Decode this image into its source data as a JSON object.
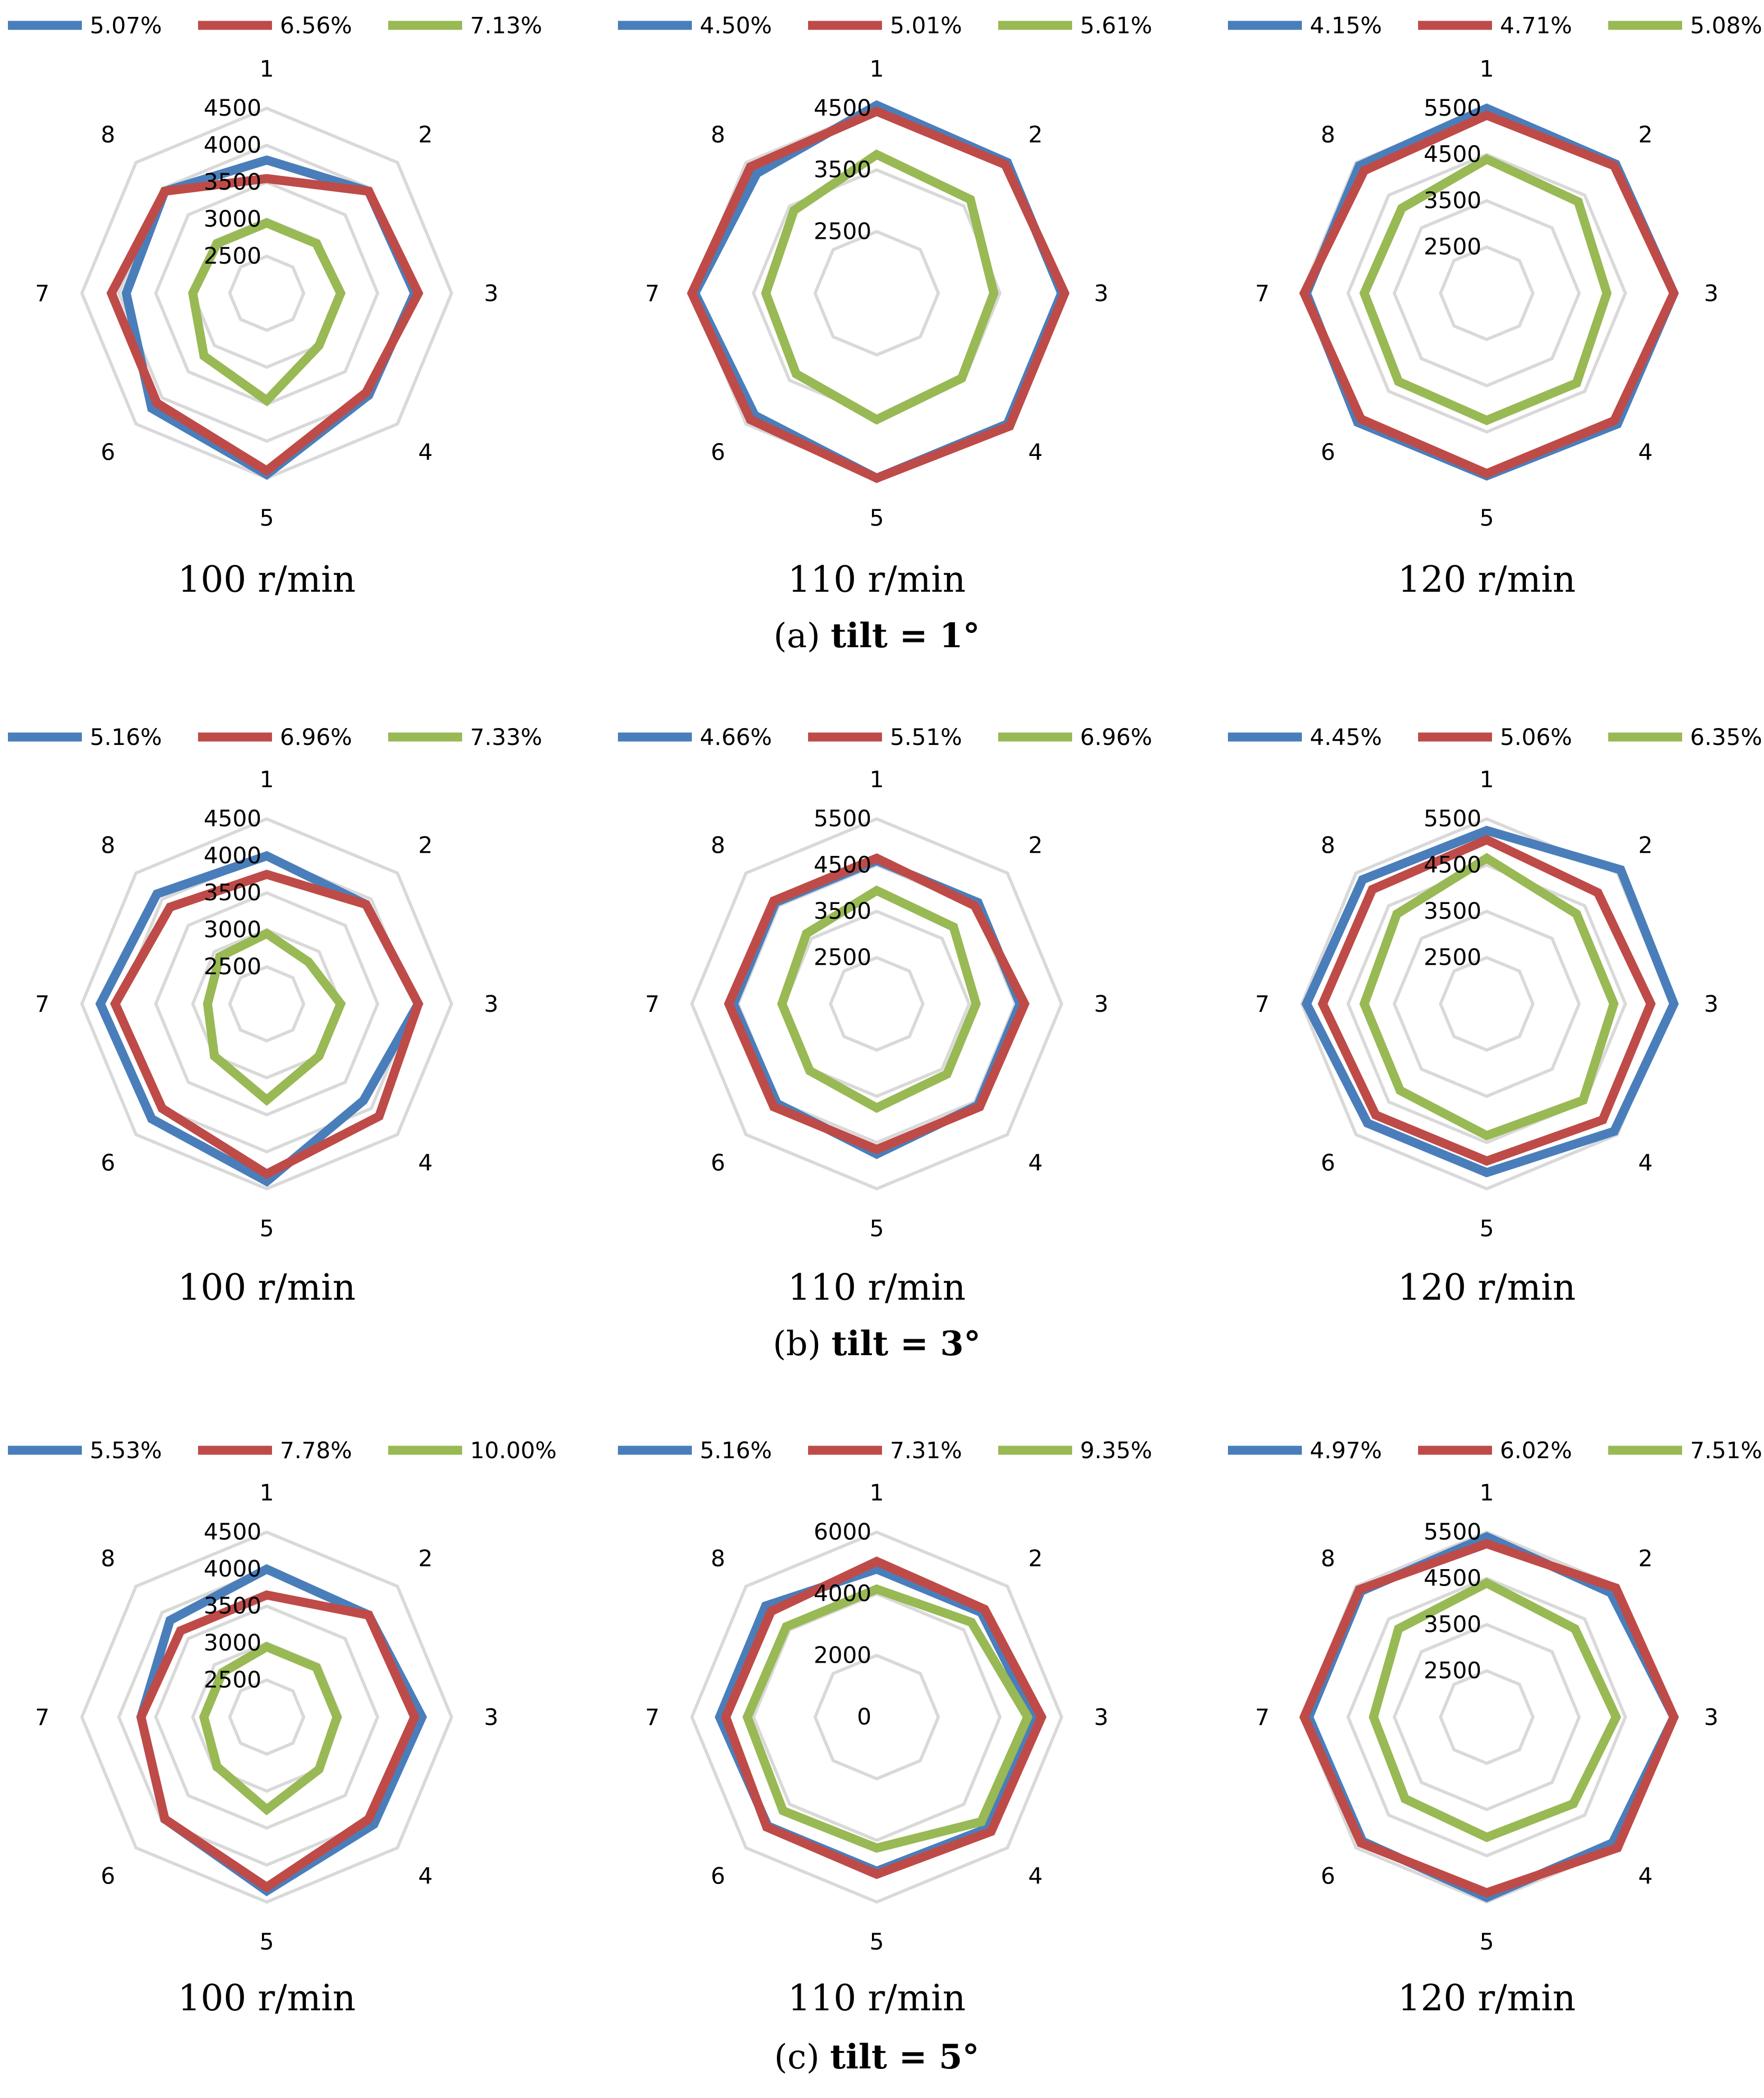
{
  "colors": {
    "blue": "#4a7ebb",
    "red": "#be4b48",
    "green": "#98b954",
    "grid": "#d9d9d9"
  },
  "axis_labels": [
    "1",
    "2",
    "3",
    "4",
    "5",
    "6",
    "7",
    "8"
  ],
  "chart_data": [
    {
      "type": "radar",
      "panel": "a",
      "title": "100 r/min",
      "legend": [
        "5.07%",
        "6.56%",
        "7.13%"
      ],
      "r_ticks": [
        "2500",
        "3000",
        "3500",
        "4000",
        "4500"
      ],
      "r_tick_values": [
        2500,
        3000,
        3500,
        4000,
        4500
      ],
      "r_range": [
        2000,
        4500
      ],
      "series": [
        {
          "name": "5.07%",
          "color": "blue",
          "values": [
            3800,
            3950,
            4000,
            3950,
            4450,
            4200,
            3900,
            3950
          ]
        },
        {
          "name": "6.56%",
          "color": "red",
          "values": [
            3550,
            3950,
            4050,
            3900,
            4400,
            4100,
            4100,
            3950
          ]
        },
        {
          "name": "7.13%",
          "color": "green",
          "values": [
            2950,
            2950,
            3000,
            3000,
            3450,
            3200,
            3000,
            2950
          ]
        }
      ]
    },
    {
      "type": "radar",
      "panel": "a",
      "title": "110 r/min",
      "legend": [
        "4.50%",
        "5.01%",
        "5.61%"
      ],
      "r_ticks": [
        "2500",
        "3500",
        "4500"
      ],
      "r_tick_values": [
        2500,
        3500,
        4500
      ],
      "r_range": [
        1500,
        4500
      ],
      "series": [
        {
          "name": "4.50%",
          "color": "blue",
          "values": [
            4550,
            4500,
            4500,
            4500,
            4500,
            4300,
            4450,
            4250
          ]
        },
        {
          "name": "5.01%",
          "color": "red",
          "values": [
            4450,
            4450,
            4550,
            4550,
            4500,
            4400,
            4500,
            4400
          ]
        },
        {
          "name": "5.61%",
          "color": "green",
          "values": [
            3750,
            3650,
            3400,
            3450,
            3550,
            3350,
            3300,
            3400
          ]
        }
      ]
    },
    {
      "type": "radar",
      "panel": "a",
      "title": "120 r/min",
      "legend": [
        "4.15%",
        "4.71%",
        "5.08%"
      ],
      "r_ticks": [
        "2500",
        "3500",
        "4500",
        "5500"
      ],
      "r_tick_values": [
        2500,
        3500,
        4500,
        5500
      ],
      "r_range": [
        1500,
        5500
      ],
      "series": [
        {
          "name": "4.15%",
          "color": "blue",
          "values": [
            5500,
            5450,
            5550,
            5500,
            5450,
            5450,
            5400,
            5400
          ]
        },
        {
          "name": "4.71%",
          "color": "red",
          "values": [
            5350,
            5400,
            5550,
            5400,
            5400,
            5350,
            5450,
            5250
          ]
        },
        {
          "name": "5.08%",
          "color": "green",
          "values": [
            4400,
            4300,
            4100,
            4250,
            4250,
            4200,
            4150,
            4100
          ]
        }
      ]
    },
    {
      "type": "radar",
      "panel": "b",
      "title": "100 r/min",
      "legend": [
        "5.16%",
        "6.96%",
        "7.33%"
      ],
      "r_ticks": [
        "2500",
        "3000",
        "3500",
        "4000",
        "4500"
      ],
      "r_tick_values": [
        2500,
        3000,
        3500,
        4000,
        4500
      ],
      "r_range": [
        2000,
        4500
      ],
      "series": [
        {
          "name": "5.16%",
          "color": "blue",
          "values": [
            4000,
            3900,
            4050,
            3850,
            4400,
            4200,
            4250,
            4100
          ]
        },
        {
          "name": "6.96%",
          "color": "red",
          "values": [
            3750,
            3900,
            4050,
            4150,
            4300,
            4000,
            4050,
            3850
          ]
        },
        {
          "name": "7.33%",
          "color": "green",
          "values": [
            2950,
            2800,
            3000,
            3000,
            3300,
            3000,
            2800,
            2900
          ]
        }
      ]
    },
    {
      "type": "radar",
      "panel": "b",
      "title": "110 r/min",
      "legend": [
        "4.66%",
        "5.51%",
        "6.96%"
      ],
      "r_ticks": [
        "2500",
        "3500",
        "4500",
        "5500"
      ],
      "r_tick_values": [
        2500,
        3500,
        4500,
        5500
      ],
      "r_range": [
        1500,
        5500
      ],
      "series": [
        {
          "name": "4.66%",
          "color": "blue",
          "values": [
            4600,
            4600,
            4600,
            4600,
            4750,
            4550,
            4600,
            4600
          ]
        },
        {
          "name": "5.51%",
          "color": "red",
          "values": [
            4650,
            4500,
            4700,
            4650,
            4650,
            4650,
            4700,
            4650
          ]
        },
        {
          "name": "6.96%",
          "color": "green",
          "values": [
            3950,
            3850,
            3650,
            3650,
            3750,
            3550,
            3550,
            3650
          ]
        }
      ]
    },
    {
      "type": "radar",
      "panel": "b",
      "title": "120 r/min",
      "legend": [
        "4.45%",
        "5.06%",
        "6.35%"
      ],
      "r_ticks": [
        "2500",
        "3500",
        "4500",
        "5500"
      ],
      "r_tick_values": [
        2500,
        3500,
        4500,
        5500
      ],
      "r_range": [
        1500,
        5500
      ],
      "series": [
        {
          "name": "4.45%",
          "color": "blue",
          "values": [
            5250,
            5600,
            5550,
            5400,
            5150,
            5150,
            5400,
            5300
          ]
        },
        {
          "name": "5.06%",
          "color": "red",
          "values": [
            5050,
            4900,
            5050,
            5050,
            4900,
            4900,
            5050,
            5000
          ]
        },
        {
          "name": "6.35%",
          "color": "green",
          "values": [
            4650,
            4250,
            4250,
            4450,
            4350,
            4150,
            4150,
            4250
          ]
        }
      ]
    },
    {
      "type": "radar",
      "panel": "c",
      "title": "100 r/min",
      "legend": [
        "5.53%",
        "7.78%",
        "10.00%"
      ],
      "r_ticks": [
        "2500",
        "3000",
        "3500",
        "4000",
        "4500"
      ],
      "r_tick_values": [
        2500,
        3000,
        3500,
        4000,
        4500
      ],
      "r_range": [
        2000,
        4500
      ],
      "series": [
        {
          "name": "5.53%",
          "color": "blue",
          "values": [
            4000,
            3950,
            4100,
            4050,
            4350,
            3950,
            3700,
            3850
          ]
        },
        {
          "name": "7.78%",
          "color": "red",
          "values": [
            3650,
            3950,
            4000,
            3950,
            4300,
            3950,
            3700,
            3650
          ]
        },
        {
          "name": "10.00%",
          "color": "green",
          "values": [
            2950,
            2950,
            2950,
            3000,
            3250,
            2950,
            2850,
            2850
          ]
        }
      ]
    },
    {
      "type": "radar",
      "panel": "c",
      "title": "110 r/min",
      "legend": [
        "5.16%",
        "7.31%",
        "9.35%"
      ],
      "r_ticks": [
        "0",
        "2000",
        "4000",
        "6000"
      ],
      "r_tick_values": [
        0,
        2000,
        4000,
        6000
      ],
      "r_range": [
        0,
        6000
      ],
      "series": [
        {
          "name": "5.16%",
          "color": "blue",
          "values": [
            4800,
            4800,
            5100,
            5100,
            5000,
            5000,
            5100,
            5100
          ]
        },
        {
          "name": "7.31%",
          "color": "red",
          "values": [
            5050,
            4950,
            5350,
            5250,
            5100,
            5050,
            4900,
            4850
          ]
        },
        {
          "name": "9.35%",
          "color": "green",
          "values": [
            4150,
            4350,
            4900,
            4800,
            4250,
            4300,
            4200,
            4150
          ]
        }
      ]
    },
    {
      "type": "radar",
      "panel": "c",
      "title": "120 r/min",
      "legend": [
        "4.97%",
        "6.02%",
        "7.51%"
      ],
      "r_ticks": [
        "2500",
        "3500",
        "4500",
        "5500"
      ],
      "r_tick_values": [
        2500,
        3500,
        4500,
        5500
      ],
      "r_range": [
        1500,
        5500
      ],
      "series": [
        {
          "name": "4.97%",
          "color": "blue",
          "values": [
            5400,
            5300,
            5550,
            5350,
            5400,
            5300,
            5350,
            5350
          ]
        },
        {
          "name": "6.02%",
          "color": "red",
          "values": [
            5250,
            5450,
            5550,
            5500,
            5300,
            5350,
            5450,
            5400
          ]
        },
        {
          "name": "7.51%",
          "color": "green",
          "values": [
            4400,
            4200,
            4300,
            4150,
            4100,
            4000,
            3950,
            4200
          ]
        }
      ]
    }
  ],
  "panel_captions": [
    {
      "letter": "(a)",
      "label": "tilt = 1°"
    },
    {
      "letter": "(b)",
      "label": "tilt = 3°"
    },
    {
      "letter": "(c)",
      "label": "tilt = 5°"
    }
  ]
}
